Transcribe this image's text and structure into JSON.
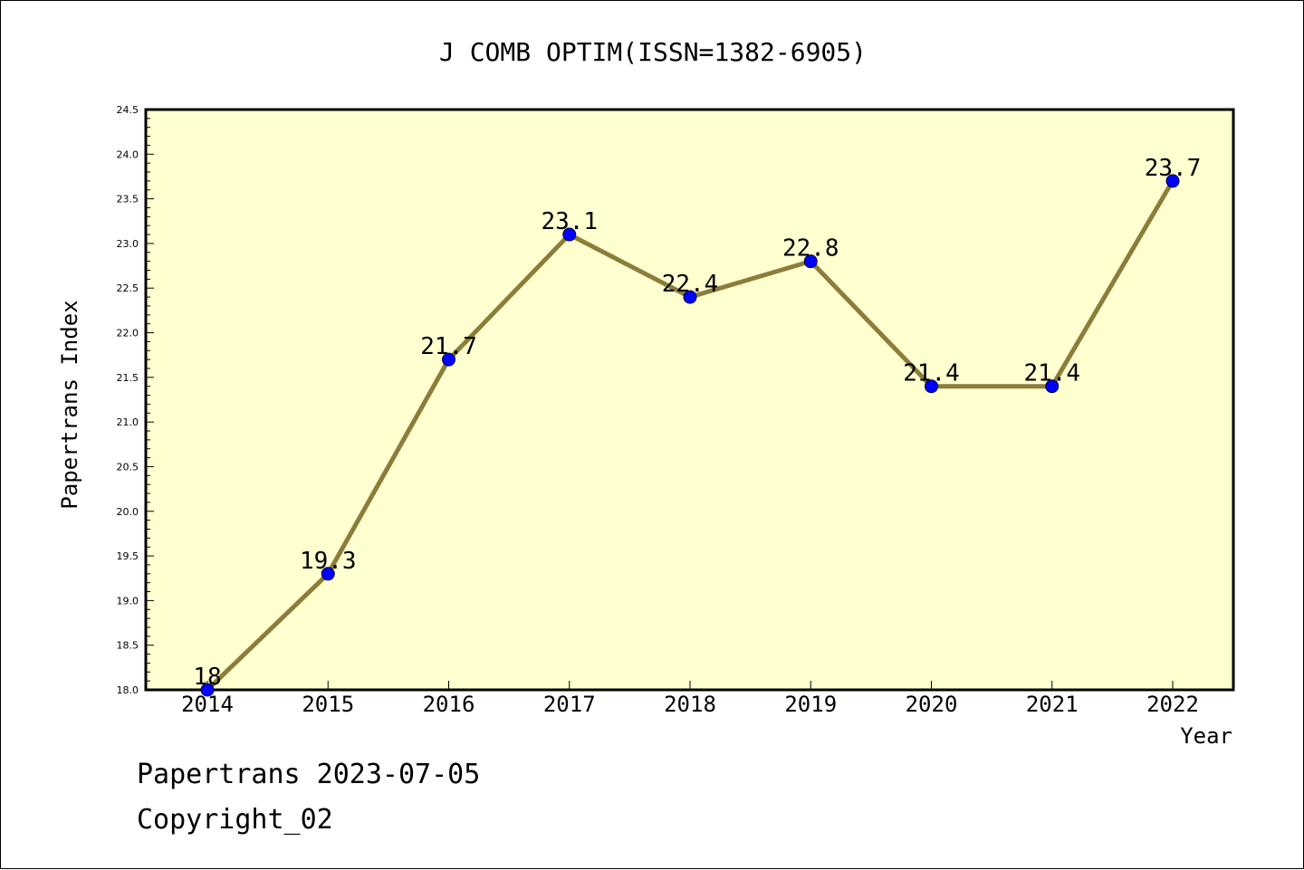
{
  "chart_data": {
    "type": "line",
    "title": "J COMB OPTIM(ISSN=1382-6905)",
    "xlabel": "Year",
    "ylabel": "Papertrans Index",
    "categories": [
      "2014",
      "2015",
      "2016",
      "2017",
      "2018",
      "2019",
      "2020",
      "2021",
      "2022"
    ],
    "series": [
      {
        "values": [
          18.0,
          19.3,
          21.7,
          23.1,
          22.4,
          22.8,
          21.4,
          21.4,
          23.7
        ]
      }
    ],
    "data_labels": [
      "18",
      "19.3",
      "21.7",
      "23.1",
      "22.4",
      "22.8",
      "21.4",
      "21.4",
      "23.7"
    ],
    "ylim": [
      18.0,
      24.5
    ],
    "yticks": [
      "18.0",
      "18.5",
      "19.0",
      "19.5",
      "20.0",
      "20.5",
      "21.0",
      "21.5",
      "22.0",
      "22.5",
      "23.0",
      "23.5",
      "24.0",
      "24.5"
    ],
    "grid": false,
    "colors": {
      "plot_background": "#ffffd0",
      "line": "#8b7d3a",
      "marker": "#0000ff"
    }
  },
  "footer": {
    "line1": "Papertrans 2023-07-05",
    "line2": "Copyright_02"
  }
}
